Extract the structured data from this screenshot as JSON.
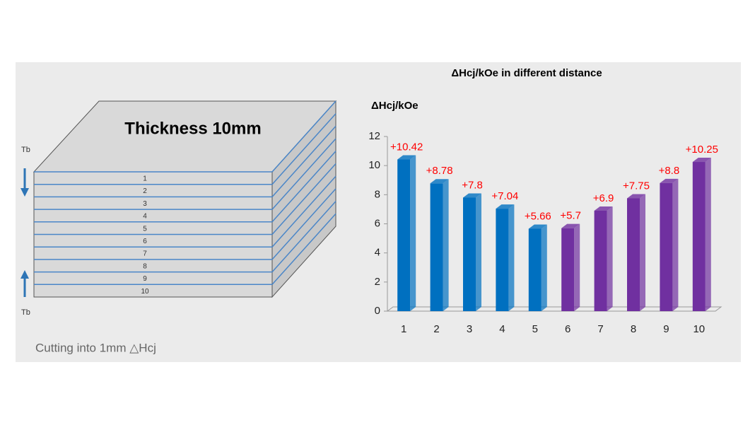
{
  "diagram": {
    "title": "Thickness 10mm",
    "top_label": "Tb",
    "bottom_label": "Tb",
    "layers": [
      "1",
      "2",
      "3",
      "4",
      "5",
      "6",
      "7",
      "8",
      "9",
      "10"
    ],
    "caption": "Cutting into 1mm △Hcj"
  },
  "chart_data": {
    "type": "bar",
    "title": "ΔHcj/kOe in different distance",
    "y_label": "ΔHcj/kOe",
    "categories": [
      "1",
      "2",
      "3",
      "4",
      "5",
      "6",
      "7",
      "8",
      "9",
      "10"
    ],
    "values": [
      10.42,
      8.78,
      7.8,
      7.04,
      5.66,
      5.7,
      6.9,
      7.75,
      8.8,
      10.25
    ],
    "value_labels": [
      "+10.42",
      "+8.78",
      "+7.8",
      "+7.04",
      "+5.66",
      "+5.7",
      "+6.9",
      "+7.75",
      "+8.8",
      "+10.25"
    ],
    "colors": [
      "#0070c0",
      "#0070c0",
      "#0070c0",
      "#0070c0",
      "#0070c0",
      "#7030a0",
      "#7030a0",
      "#7030a0",
      "#7030a0",
      "#7030a0"
    ],
    "value_label_color": "#ff0000",
    "ylim": [
      0,
      12
    ],
    "yticks": [
      0,
      2,
      4,
      6,
      8,
      10,
      12
    ]
  }
}
